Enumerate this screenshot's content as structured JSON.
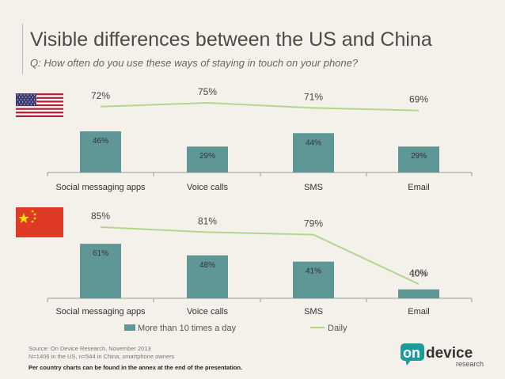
{
  "title": "Visible differences between the US and China",
  "subtitle": "Q: How often do you use these ways of staying in touch on your phone?",
  "colors": {
    "bar": "#5f9696",
    "line": "#b5d58e",
    "us_red": "#b22234",
    "us_blue": "#3c3b6e",
    "cn_red": "#de3a25",
    "cn_star": "#ffde00"
  },
  "chart_data": [
    {
      "type": "bar",
      "country": "US",
      "flag_icon": "us-flag-icon",
      "categories": [
        "Social messaging apps",
        "Voice calls",
        "SMS",
        "Email"
      ],
      "series": [
        {
          "name": "More than 10 times a day",
          "type": "bar",
          "values": [
            46,
            29,
            44,
            29
          ]
        },
        {
          "name": "Daily",
          "type": "line",
          "values": [
            72,
            75,
            71,
            69
          ]
        }
      ],
      "ylim": [
        0,
        100
      ]
    },
    {
      "type": "bar",
      "country": "China",
      "flag_icon": "china-flag-icon",
      "categories": [
        "Social messaging apps",
        "Voice calls",
        "SMS",
        "Email"
      ],
      "series": [
        {
          "name": "More than 10 times a day",
          "type": "bar",
          "values": [
            61,
            48,
            41,
            10
          ]
        },
        {
          "name": "Daily",
          "type": "line",
          "values": [
            85,
            81,
            79,
            40
          ]
        }
      ],
      "ylim": [
        0,
        100
      ]
    }
  ],
  "legend": {
    "bar_label": "More than 10 times a day",
    "line_label": "Daily"
  },
  "footer": {
    "source": "Source: On Device Research, November 2013",
    "sample": "N=1406 in the US, n=544 in China, smartphone owners",
    "note": "Per country charts can be found in the annex at the end of the presentation."
  },
  "logo": {
    "on": "on",
    "device": "device",
    "research": "research"
  }
}
